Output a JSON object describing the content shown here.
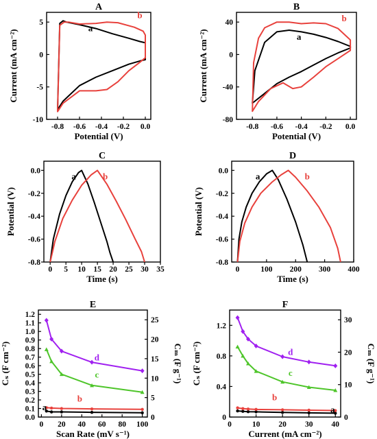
{
  "colors": {
    "black": "#000000",
    "red": "#e8413c",
    "purple": "#a020f0",
    "green": "#4ec52a"
  },
  "chart_data": [
    {
      "panel": "A",
      "type": "line",
      "xlabel": "Potential (V)",
      "ylabel": "Current (mA cm⁻²)",
      "xlim": [
        -0.9,
        0.05
      ],
      "ylim": [
        -10,
        6.5
      ],
      "xticks": [
        -0.8,
        -0.6,
        -0.4,
        -0.2,
        0.0
      ],
      "xtick_labels": [
        "-0.8",
        "-0.6",
        "-0.4",
        "-0.2",
        "0.0"
      ],
      "yticks": [
        -10,
        -5,
        0,
        5
      ],
      "ytick_labels": [
        "-10",
        "-5",
        "0",
        "5"
      ],
      "series": [
        {
          "name": "a",
          "color": "#000000",
          "closed": true,
          "x": [
            -0.8,
            -0.78,
            -0.75,
            -0.72,
            -0.6,
            -0.45,
            -0.3,
            -0.15,
            -0.05,
            0.0,
            0.0,
            -0.05,
            -0.15,
            -0.3,
            -0.45,
            -0.6,
            -0.75,
            -0.8
          ],
          "y": [
            -8.5,
            4.8,
            5.2,
            5.0,
            4.6,
            4.0,
            3.2,
            2.5,
            2.0,
            1.8,
            -0.8,
            -1.0,
            -1.5,
            -2.5,
            -3.5,
            -4.8,
            -7.2,
            -8.5
          ]
        },
        {
          "name": "b",
          "color": "#e8413c",
          "closed": true,
          "x": [
            -0.8,
            -0.78,
            -0.74,
            -0.7,
            -0.6,
            -0.45,
            -0.35,
            -0.25,
            -0.1,
            -0.02,
            0.0,
            0.0,
            -0.05,
            -0.15,
            -0.25,
            -0.35,
            -0.45,
            -0.6,
            -0.75,
            -0.8
          ],
          "y": [
            -8.8,
            4.5,
            5.0,
            5.0,
            4.7,
            4.8,
            5.0,
            4.9,
            4.2,
            3.6,
            3.0,
            -0.5,
            -1.2,
            -2.5,
            -4.2,
            -5.4,
            -5.6,
            -5.6,
            -7.5,
            -8.8
          ]
        }
      ],
      "labels": [
        {
          "text": "a",
          "x": -0.5,
          "y": 3.6,
          "color": "#000000"
        },
        {
          "text": "b",
          "x": -0.05,
          "y": 5.6,
          "color": "#e8413c"
        }
      ]
    },
    {
      "panel": "B",
      "type": "line",
      "xlabel": "Potential (V)",
      "ylabel": "Current (mA cm⁻²)",
      "xlim": [
        -0.93,
        0.05
      ],
      "ylim": [
        -80,
        52
      ],
      "xticks": [
        -0.8,
        -0.6,
        -0.4,
        -0.2,
        0.0
      ],
      "xtick_labels": [
        "-0.8",
        "-0.6",
        "-0.4",
        "-0.2",
        "0.0"
      ],
      "yticks": [
        -80,
        -40,
        0,
        40
      ],
      "ytick_labels": [
        "-80",
        "-40",
        "0",
        "40"
      ],
      "series": [
        {
          "name": "a",
          "color": "#000000",
          "closed": true,
          "x": [
            -0.8,
            -0.78,
            -0.7,
            -0.6,
            -0.5,
            -0.4,
            -0.3,
            -0.2,
            -0.1,
            0.0,
            0.0,
            -0.1,
            -0.2,
            -0.3,
            -0.4,
            -0.5,
            -0.6,
            -0.7,
            -0.8
          ],
          "y": [
            -60,
            -20,
            15,
            28,
            30,
            28,
            25,
            21,
            16,
            10,
            8,
            2,
            -5,
            -13,
            -21,
            -28,
            -36,
            -48,
            -60
          ]
        },
        {
          "name": "b",
          "color": "#e8413c",
          "closed": true,
          "x": [
            -0.8,
            -0.79,
            -0.75,
            -0.7,
            -0.6,
            -0.5,
            -0.4,
            -0.3,
            -0.2,
            -0.1,
            0.0,
            0.0,
            -0.1,
            -0.2,
            -0.3,
            -0.4,
            -0.47,
            -0.55,
            -0.65,
            -0.75,
            -0.8
          ],
          "y": [
            -70,
            -10,
            20,
            33,
            40,
            40,
            38,
            39,
            38,
            32,
            18,
            5,
            -5,
            -15,
            -28,
            -40,
            -42,
            -35,
            -42,
            -58,
            -70
          ]
        }
      ],
      "labels": [
        {
          "text": "a",
          "x": -0.42,
          "y": 18,
          "color": "#000000"
        },
        {
          "text": "b",
          "x": -0.05,
          "y": 41,
          "color": "#e8413c"
        }
      ]
    },
    {
      "panel": "C",
      "type": "line",
      "xlabel": "Time (s)",
      "ylabel": "Potential (V)",
      "xlim": [
        -2,
        35
      ],
      "ylim": [
        -0.8,
        0.08
      ],
      "xticks": [
        0,
        5,
        10,
        15,
        20,
        25,
        30,
        35
      ],
      "xtick_labels": [
        "0",
        "5",
        "10",
        "15",
        "20",
        "25",
        "30",
        "35"
      ],
      "yticks": [
        -0.8,
        -0.6,
        -0.4,
        -0.2,
        0.0
      ],
      "ytick_labels": [
        "-0.8",
        "-0.6",
        "-0.4",
        "-0.2",
        "0.0"
      ],
      "series": [
        {
          "name": "a",
          "color": "#000000",
          "closed": false,
          "x": [
            0,
            1,
            3,
            5,
            7,
            9,
            10,
            12,
            14,
            16,
            18,
            19,
            20
          ],
          "y": [
            -0.8,
            -0.6,
            -0.38,
            -0.22,
            -0.1,
            -0.02,
            0.0,
            -0.12,
            -0.28,
            -0.45,
            -0.62,
            -0.72,
            -0.8
          ]
        },
        {
          "name": "b",
          "color": "#e8413c",
          "closed": false,
          "x": [
            0,
            1.5,
            4,
            7,
            10,
            13,
            15,
            18,
            21,
            24,
            27,
            29,
            30
          ],
          "y": [
            -0.8,
            -0.62,
            -0.42,
            -0.26,
            -0.13,
            -0.04,
            0.0,
            -0.12,
            -0.27,
            -0.43,
            -0.6,
            -0.71,
            -0.8
          ]
        }
      ],
      "labels": [
        {
          "text": "a",
          "x": 7.5,
          "y": -0.08,
          "color": "#000000"
        },
        {
          "text": "b",
          "x": 17.5,
          "y": -0.08,
          "color": "#e8413c"
        }
      ]
    },
    {
      "panel": "D",
      "type": "line",
      "xlabel": "Time (s)",
      "ylabel": "Potential (V)",
      "xlim": [
        -20,
        400
      ],
      "ylim": [
        -0.8,
        0.08
      ],
      "xticks": [
        0,
        100,
        200,
        300,
        400
      ],
      "xtick_labels": [
        "0",
        "100",
        "200",
        "300",
        "400"
      ],
      "yticks": [
        -0.8,
        -0.6,
        -0.4,
        -0.2,
        0.0
      ],
      "ytick_labels": [
        "-0.8",
        "-0.6",
        "-0.4",
        "-0.2",
        "0.0"
      ],
      "series": [
        {
          "name": "a",
          "color": "#000000",
          "closed": false,
          "x": [
            0,
            5,
            15,
            30,
            50,
            75,
            100,
            120,
            140,
            170,
            200,
            225,
            240
          ],
          "y": [
            -0.8,
            -0.6,
            -0.45,
            -0.32,
            -0.2,
            -0.1,
            -0.03,
            0.0,
            -0.08,
            -0.25,
            -0.45,
            -0.65,
            -0.8
          ]
        },
        {
          "name": "b",
          "color": "#e8413c",
          "closed": false,
          "x": [
            0,
            8,
            25,
            50,
            80,
            120,
            150,
            175,
            200,
            240,
            280,
            320,
            345,
            355
          ],
          "y": [
            -0.8,
            -0.62,
            -0.46,
            -0.32,
            -0.2,
            -0.1,
            -0.04,
            0.0,
            -0.06,
            -0.18,
            -0.32,
            -0.5,
            -0.68,
            -0.8
          ]
        }
      ],
      "labels": [
        {
          "text": "a",
          "x": 70,
          "y": -0.08,
          "color": "#000000"
        },
        {
          "text": "b",
          "x": 240,
          "y": -0.08,
          "color": "#e8413c"
        }
      ]
    },
    {
      "panel": "E",
      "type": "line",
      "xlabel": "Scan Rate (mV s⁻¹)",
      "ylabel": "Cₛ (F cm⁻²)",
      "ylabel2": "Cₘ (F g⁻¹)",
      "xlim": [
        -3,
        105
      ],
      "ylim": [
        0,
        1.25
      ],
      "ylim2": [
        0,
        27.5
      ],
      "xticks": [
        0,
        20,
        40,
        60,
        80,
        100
      ],
      "xtick_labels": [
        "0",
        "20",
        "40",
        "60",
        "80",
        "100"
      ],
      "yticks": [
        0,
        0.1,
        0.2,
        0.3,
        0.4,
        0.5,
        0.6,
        0.7,
        0.8,
        0.9,
        1.0,
        1.1,
        1.2
      ],
      "ytick_labels": [
        "0.0",
        "0.1",
        "0.2",
        "0.3",
        "0.4",
        "0.5",
        "0.6",
        "0.7",
        "0.8",
        "0.9",
        "1.0",
        "1.1",
        "1.2"
      ],
      "yticks2": [
        0,
        5,
        10,
        15,
        20,
        25
      ],
      "ytick2_labels": [
        "0",
        "5",
        "10",
        "15",
        "20",
        "25"
      ],
      "series": [
        {
          "name": "a",
          "color": "#000000",
          "axis": "left",
          "marker": "circle",
          "x": [
            5,
            10,
            20,
            50,
            100
          ],
          "y": [
            0.07,
            0.06,
            0.06,
            0.055,
            0.05
          ]
        },
        {
          "name": "b",
          "color": "#e8413c",
          "axis": "left",
          "marker": "circle",
          "x": [
            5,
            10,
            20,
            50,
            100
          ],
          "y": [
            0.11,
            0.105,
            0.1,
            0.095,
            0.09
          ]
        },
        {
          "name": "c",
          "color": "#4ec52a",
          "axis": "left",
          "marker": "triangle",
          "x": [
            5,
            10,
            20,
            50,
            100
          ],
          "y": [
            0.79,
            0.65,
            0.5,
            0.37,
            0.29
          ]
        },
        {
          "name": "d",
          "color": "#a020f0",
          "axis": "left",
          "marker": "diamond",
          "x": [
            5,
            10,
            20,
            50,
            100
          ],
          "y": [
            1.13,
            0.91,
            0.77,
            0.64,
            0.54
          ]
        }
      ],
      "labels": [
        {
          "text": "a",
          "x": 3,
          "y": 0.08,
          "color": "#000000"
        },
        {
          "text": "b",
          "x": 38,
          "y": 0.18,
          "color": "#e8413c"
        },
        {
          "text": "c",
          "x": 55,
          "y": 0.46,
          "color": "#4ec52a"
        },
        {
          "text": "d",
          "x": 55,
          "y": 0.66,
          "color": "#a020f0"
        }
      ]
    },
    {
      "panel": "F",
      "type": "line",
      "xlabel": "Current (mA cm⁻²)",
      "ylabel": "Cₛ (F cm⁻²)",
      "ylabel2": "Cₘ (F g⁻¹)",
      "xlim": [
        0,
        42
      ],
      "ylim": [
        0,
        1.4
      ],
      "ylim2": [
        0,
        33
      ],
      "xticks": [
        0,
        10,
        20,
        30,
        40
      ],
      "xtick_labels": [
        "0",
        "10",
        "20",
        "30",
        "40"
      ],
      "yticks": [
        0,
        0.4,
        0.8,
        1.2
      ],
      "ytick_labels": [
        "0",
        "0.4",
        "0.8",
        "1.2"
      ],
      "yticks2": [
        0,
        10,
        20,
        30
      ],
      "ytick2_labels": [
        "0",
        "10",
        "20",
        "30"
      ],
      "series": [
        {
          "name": "a",
          "color": "#000000",
          "axis": "left",
          "marker": "circle",
          "x": [
            3,
            5,
            7,
            10,
            20,
            30,
            40
          ],
          "y": [
            0.08,
            0.075,
            0.07,
            0.068,
            0.06,
            0.055,
            0.05
          ]
        },
        {
          "name": "b",
          "color": "#e8413c",
          "axis": "left",
          "marker": "circle",
          "x": [
            3,
            5,
            7,
            10,
            20,
            30,
            40
          ],
          "y": [
            0.12,
            0.11,
            0.105,
            0.1,
            0.095,
            0.09,
            0.085
          ]
        },
        {
          "name": "c",
          "color": "#4ec52a",
          "axis": "left",
          "marker": "triangle",
          "x": [
            3,
            5,
            7,
            10,
            20,
            30,
            40
          ],
          "y": [
            0.92,
            0.8,
            0.7,
            0.6,
            0.46,
            0.39,
            0.35
          ]
        },
        {
          "name": "d",
          "color": "#a020f0",
          "axis": "left",
          "marker": "diamond",
          "x": [
            3,
            5,
            7,
            10,
            20,
            30,
            40
          ],
          "y": [
            1.3,
            1.12,
            1.02,
            0.93,
            0.79,
            0.72,
            0.67
          ]
        }
      ],
      "labels": [
        {
          "text": "a",
          "x": 39,
          "y": 0.06,
          "color": "#000000"
        },
        {
          "text": "b",
          "x": 17,
          "y": 0.22,
          "color": "#e8413c"
        },
        {
          "text": "c",
          "x": 23,
          "y": 0.54,
          "color": "#4ec52a"
        },
        {
          "text": "d",
          "x": 23,
          "y": 0.81,
          "color": "#a020f0"
        }
      ]
    }
  ]
}
